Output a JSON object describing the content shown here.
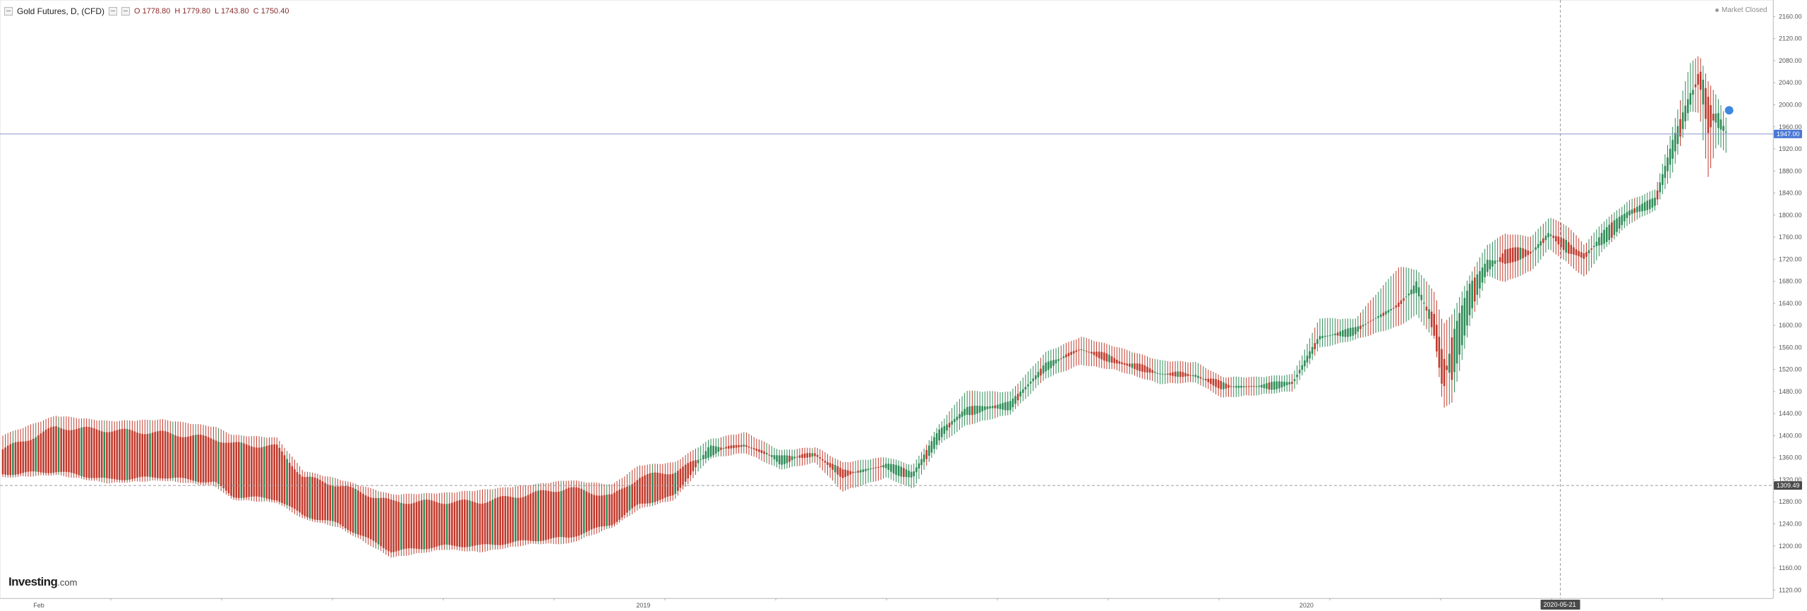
{
  "legend": {
    "symbol": "Gold Futures, D, (CFD)",
    "open": "O 1778.80",
    "high": "H 1779.80",
    "low": "L 1743.80",
    "close": "C 1750.40"
  },
  "market_status": "Market Closed",
  "logo": {
    "brand": "Investing",
    "suffix": ".com"
  },
  "markers": {
    "current_price": "1947.00",
    "dashed_price": "1309.49",
    "crosshair_date": "2020-05-21"
  },
  "colors": {
    "up": "#2e8b57",
    "down": "#c0392b",
    "current_price_line": "#8c95c8",
    "current_price_badge": "#4a78d6",
    "dashed_badge": "#4a4a4a"
  },
  "icons": [
    "minimize-icon",
    "settings-icon",
    "alert-icon"
  ],
  "chart_data": {
    "type": "candlestick",
    "title": "Gold Futures, D, (CFD)",
    "xlabel": "",
    "ylabel": "",
    "x_range": [
      "2018-02",
      "2020-09"
    ],
    "ylim": [
      1105,
      2190
    ],
    "y_ticks": [
      1120.0,
      1160.0,
      1200.0,
      1240.0,
      1280.0,
      1320.0,
      1360.0,
      1400.0,
      1440.0,
      1480.0,
      1520.0,
      1560.0,
      1600.0,
      1640.0,
      1680.0,
      1720.0,
      1760.0,
      1800.0,
      1840.0,
      1880.0,
      1920.0,
      1960.0,
      2000.0,
      2040.0,
      2080.0,
      2120.0,
      2160.0
    ],
    "x_tick_labels": [
      {
        "label": "Feb",
        "pos": 0.022
      },
      {
        "label": "2019",
        "pos": 0.362
      },
      {
        "label": "2020",
        "pos": 0.736
      }
    ],
    "horizontal_lines": [
      {
        "price": 1947.0,
        "style": "solid"
      },
      {
        "price": 1309.49,
        "style": "dashed"
      }
    ],
    "crosshair": {
      "date": "2020-05-21",
      "pos": 0.88
    },
    "anchors": [
      {
        "pos": 0.0,
        "open": 1375,
        "close": 1330,
        "high": 1400,
        "low": 1325
      },
      {
        "pos": 0.03,
        "open": 1415,
        "close": 1335,
        "high": 1435,
        "low": 1330
      },
      {
        "pos": 0.06,
        "open": 1410,
        "close": 1320,
        "high": 1425,
        "low": 1315
      },
      {
        "pos": 0.09,
        "open": 1405,
        "close": 1325,
        "high": 1428,
        "low": 1320
      },
      {
        "pos": 0.12,
        "open": 1395,
        "close": 1315,
        "high": 1415,
        "low": 1310
      },
      {
        "pos": 0.13,
        "open": 1385,
        "close": 1290,
        "high": 1400,
        "low": 1285
      },
      {
        "pos": 0.155,
        "open": 1380,
        "close": 1285,
        "high": 1395,
        "low": 1280
      },
      {
        "pos": 0.17,
        "open": 1325,
        "close": 1255,
        "high": 1335,
        "low": 1250
      },
      {
        "pos": 0.19,
        "open": 1310,
        "close": 1240,
        "high": 1320,
        "low": 1235
      },
      {
        "pos": 0.22,
        "open": 1280,
        "close": 1190,
        "high": 1292,
        "low": 1180
      },
      {
        "pos": 0.25,
        "open": 1280,
        "close": 1200,
        "high": 1295,
        "low": 1195
      },
      {
        "pos": 0.27,
        "open": 1280,
        "close": 1200,
        "high": 1300,
        "low": 1190
      },
      {
        "pos": 0.3,
        "open": 1295,
        "close": 1210,
        "high": 1310,
        "low": 1205
      },
      {
        "pos": 0.32,
        "open": 1305,
        "close": 1215,
        "high": 1318,
        "low": 1205
      },
      {
        "pos": 0.345,
        "open": 1290,
        "close": 1240,
        "high": 1310,
        "low": 1235
      },
      {
        "pos": 0.36,
        "open": 1325,
        "close": 1275,
        "high": 1345,
        "low": 1268
      },
      {
        "pos": 0.38,
        "open": 1335,
        "close": 1290,
        "high": 1350,
        "low": 1285
      },
      {
        "pos": 0.4,
        "open": 1365,
        "close": 1380,
        "high": 1392,
        "low": 1360
      },
      {
        "pos": 0.42,
        "open": 1388,
        "close": 1378,
        "high": 1405,
        "low": 1370
      },
      {
        "pos": 0.44,
        "open": 1350,
        "close": 1362,
        "high": 1372,
        "low": 1340
      },
      {
        "pos": 0.46,
        "open": 1370,
        "close": 1362,
        "high": 1378,
        "low": 1352
      },
      {
        "pos": 0.475,
        "open": 1335,
        "close": 1325,
        "high": 1350,
        "low": 1300
      },
      {
        "pos": 0.5,
        "open": 1340,
        "close": 1350,
        "high": 1360,
        "low": 1325
      },
      {
        "pos": 0.515,
        "open": 1320,
        "close": 1335,
        "high": 1345,
        "low": 1305
      },
      {
        "pos": 0.53,
        "open": 1395,
        "close": 1410,
        "high": 1420,
        "low": 1385
      },
      {
        "pos": 0.545,
        "open": 1440,
        "close": 1450,
        "high": 1480,
        "low": 1420
      },
      {
        "pos": 0.57,
        "open": 1450,
        "close": 1460,
        "high": 1478,
        "low": 1440
      },
      {
        "pos": 0.59,
        "open": 1520,
        "close": 1530,
        "high": 1550,
        "low": 1505
      },
      {
        "pos": 0.61,
        "open": 1560,
        "close": 1555,
        "high": 1578,
        "low": 1530
      },
      {
        "pos": 0.63,
        "open": 1540,
        "close": 1530,
        "high": 1560,
        "low": 1520
      },
      {
        "pos": 0.655,
        "open": 1515,
        "close": 1510,
        "high": 1535,
        "low": 1495
      },
      {
        "pos": 0.675,
        "open": 1510,
        "close": 1508,
        "high": 1532,
        "low": 1498
      },
      {
        "pos": 0.69,
        "open": 1495,
        "close": 1485,
        "high": 1505,
        "low": 1470
      },
      {
        "pos": 0.71,
        "open": 1485,
        "close": 1492,
        "high": 1505,
        "low": 1475
      },
      {
        "pos": 0.73,
        "open": 1490,
        "close": 1500,
        "high": 1510,
        "low": 1482
      },
      {
        "pos": 0.745,
        "open": 1575,
        "close": 1580,
        "high": 1612,
        "low": 1560
      },
      {
        "pos": 0.765,
        "open": 1585,
        "close": 1595,
        "high": 1610,
        "low": 1575
      },
      {
        "pos": 0.79,
        "open": 1640,
        "close": 1635,
        "high": 1705,
        "low": 1600
      },
      {
        "pos": 0.8,
        "open": 1660,
        "close": 1680,
        "high": 1700,
        "low": 1620
      },
      {
        "pos": 0.81,
        "open": 1620,
        "close": 1580,
        "high": 1660,
        "low": 1575
      },
      {
        "pos": 0.815,
        "open": 1540,
        "close": 1480,
        "high": 1600,
        "low": 1452
      },
      {
        "pos": 0.82,
        "open": 1500,
        "close": 1580,
        "high": 1620,
        "low": 1460
      },
      {
        "pos": 0.83,
        "open": 1620,
        "close": 1675,
        "high": 1690,
        "low": 1600
      },
      {
        "pos": 0.84,
        "open": 1695,
        "close": 1720,
        "high": 1745,
        "low": 1690
      },
      {
        "pos": 0.85,
        "open": 1740,
        "close": 1710,
        "high": 1765,
        "low": 1680
      },
      {
        "pos": 0.865,
        "open": 1735,
        "close": 1730,
        "high": 1760,
        "low": 1700
      },
      {
        "pos": 0.875,
        "open": 1760,
        "close": 1770,
        "high": 1795,
        "low": 1740
      },
      {
        "pos": 0.885,
        "open": 1755,
        "close": 1730,
        "high": 1780,
        "low": 1715
      },
      {
        "pos": 0.895,
        "open": 1730,
        "close": 1720,
        "high": 1745,
        "low": 1688
      },
      {
        "pos": 0.905,
        "open": 1745,
        "close": 1770,
        "high": 1785,
        "low": 1735
      },
      {
        "pos": 0.92,
        "open": 1795,
        "close": 1810,
        "high": 1825,
        "low": 1785
      },
      {
        "pos": 0.935,
        "open": 1820,
        "close": 1830,
        "high": 1845,
        "low": 1810
      },
      {
        "pos": 0.945,
        "open": 1900,
        "close": 1940,
        "high": 1960,
        "low": 1880
      },
      {
        "pos": 0.955,
        "open": 2005,
        "close": 2020,
        "high": 2075,
        "low": 1990
      },
      {
        "pos": 0.96,
        "open": 2065,
        "close": 2040,
        "high": 2090,
        "low": 1985
      },
      {
        "pos": 0.965,
        "open": 2010,
        "close": 1950,
        "high": 2040,
        "low": 1870
      },
      {
        "pos": 0.97,
        "open": 1960,
        "close": 1990,
        "high": 2015,
        "low": 1930
      },
      {
        "pos": 0.975,
        "open": 1955,
        "close": 1947,
        "high": 1975,
        "low": 1915
      }
    ]
  }
}
